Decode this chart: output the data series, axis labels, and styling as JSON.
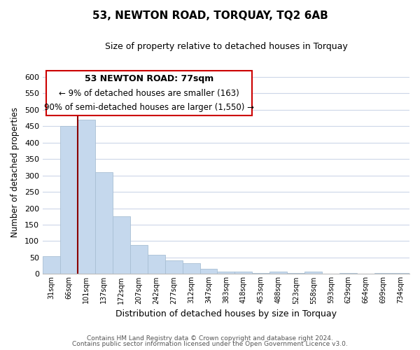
{
  "title": "53, NEWTON ROAD, TORQUAY, TQ2 6AB",
  "subtitle": "Size of property relative to detached houses in Torquay",
  "xlabel": "Distribution of detached houses by size in Torquay",
  "ylabel": "Number of detached properties",
  "bar_labels": [
    "31sqm",
    "66sqm",
    "101sqm",
    "137sqm",
    "172sqm",
    "207sqm",
    "242sqm",
    "277sqm",
    "312sqm",
    "347sqm",
    "383sqm",
    "418sqm",
    "453sqm",
    "488sqm",
    "523sqm",
    "558sqm",
    "593sqm",
    "629sqm",
    "664sqm",
    "699sqm",
    "734sqm"
  ],
  "bar_values": [
    55,
    450,
    470,
    310,
    175,
    88,
    58,
    42,
    32,
    15,
    7,
    8,
    2,
    7,
    2,
    8,
    0,
    3,
    0,
    2,
    3
  ],
  "bar_color": "#c5d8ed",
  "bar_edge_color": "#a8bfd4",
  "vline_color": "#8b0000",
  "annotation_title": "53 NEWTON ROAD: 77sqm",
  "annotation_line1": "← 9% of detached houses are smaller (163)",
  "annotation_line2": "90% of semi-detached houses are larger (1,550) →",
  "annotation_box_color": "#ffffff",
  "annotation_box_edge": "#cc0000",
  "ylim": [
    0,
    620
  ],
  "yticks": [
    0,
    50,
    100,
    150,
    200,
    250,
    300,
    350,
    400,
    450,
    500,
    550,
    600
  ],
  "footer_line1": "Contains HM Land Registry data © Crown copyright and database right 2024.",
  "footer_line2": "Contains public sector information licensed under the Open Government Licence v3.0.",
  "bg_color": "#ffffff",
  "grid_color": "#ccd6e8"
}
